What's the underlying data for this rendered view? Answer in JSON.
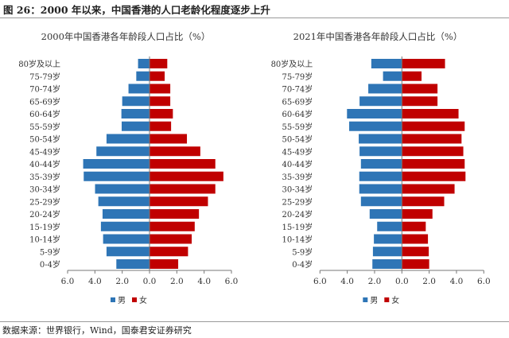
{
  "figure_title": "图 26：2000 年以来，中国香港的人口老龄化程度逐步上升",
  "source": "数据来源：世界银行，Wind，国泰君安证券研究",
  "colors": {
    "male": "#2e75b6",
    "female": "#c00000"
  },
  "chart_data": [
    {
      "type": "bar",
      "orientation": "horizontal-pyramid",
      "title": "2000年中国香港各年龄段人口占比（%）",
      "categories": [
        "80岁及以上",
        "75-79岁",
        "70-74岁",
        "65-69岁",
        "60-64岁",
        "55-59岁",
        "50-54岁",
        "45-49岁",
        "40-44岁",
        "35-39岁",
        "30-34岁",
        "25-29岁",
        "20-24岁",
        "15-19岁",
        "10-14岁",
        "5-9岁",
        "0-4岁"
      ],
      "series": [
        {
          "name": "男",
          "values": [
            0.84,
            0.97,
            1.54,
            2.0,
            2.06,
            2.04,
            3.15,
            3.89,
            4.86,
            4.82,
            3.99,
            3.75,
            3.44,
            3.56,
            3.4,
            3.15,
            2.43
          ]
        },
        {
          "name": "女",
          "values": [
            1.3,
            1.11,
            1.52,
            1.52,
            1.71,
            1.58,
            2.74,
            3.72,
            4.82,
            5.41,
            4.82,
            4.28,
            3.62,
            3.31,
            3.09,
            2.82,
            2.1
          ]
        }
      ],
      "xlim": [
        -6,
        6
      ],
      "xticks": [
        "6.0",
        "4.0",
        "2.0",
        "0.0",
        "2.0",
        "4.0",
        "6.0"
      ],
      "legend": "bottom"
    },
    {
      "type": "bar",
      "orientation": "horizontal-pyramid",
      "title": "2021年中国香港各年龄段人口占比（%）",
      "categories": [
        "80岁及以上",
        "75-79岁",
        "70-74岁",
        "65-69岁",
        "60-64岁",
        "55-59岁",
        "50-54岁",
        "45-49岁",
        "40-44岁",
        "35-39岁",
        "30-34岁",
        "25-29岁",
        "20-24岁",
        "15-19岁",
        "10-14岁",
        "5-9岁",
        "0-4岁"
      ],
      "series": [
        {
          "name": "男",
          "values": [
            2.24,
            1.38,
            2.46,
            3.1,
            4.02,
            3.86,
            3.16,
            3.1,
            3.0,
            3.12,
            3.12,
            3.0,
            2.36,
            1.81,
            2.05,
            2.12,
            2.16
          ]
        },
        {
          "name": "女",
          "values": [
            3.16,
            1.44,
            2.61,
            2.61,
            4.15,
            4.6,
            4.37,
            4.5,
            4.6,
            4.66,
            3.86,
            3.1,
            2.24,
            1.75,
            1.91,
            1.97,
            2.0
          ]
        }
      ],
      "xlim": [
        -6,
        6
      ],
      "xticks": [
        "6.0",
        "4.0",
        "2.0",
        "0.0",
        "2.0",
        "4.0",
        "6.0"
      ],
      "legend": "bottom"
    }
  ]
}
